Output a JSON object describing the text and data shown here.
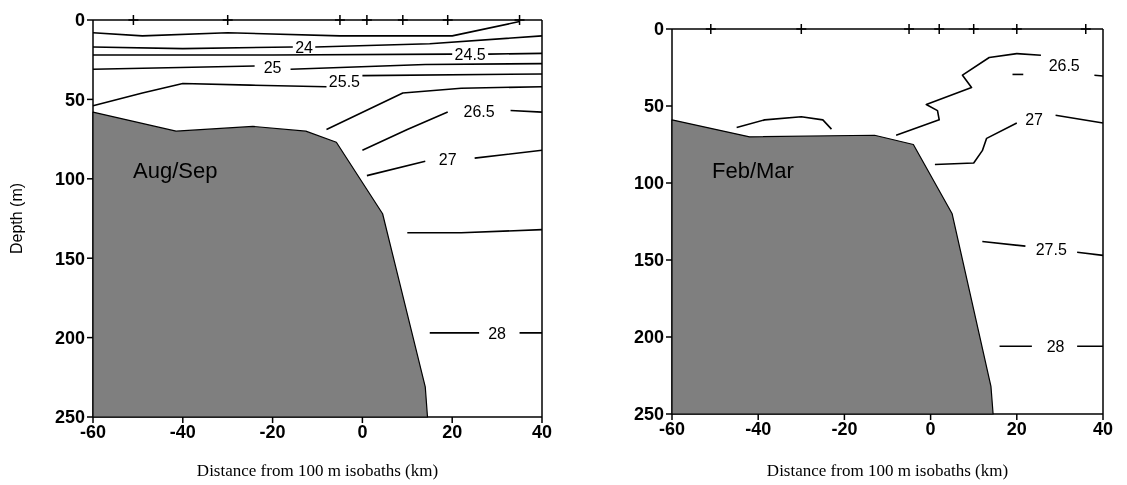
{
  "chart_data": [
    {
      "type": "line",
      "xlabel": "Distance from 100 m isobaths (km)",
      "ylabel": "Depth (m)",
      "annotations": [
        "Aug/Sep"
      ],
      "xlim": [
        -60,
        40
      ],
      "xticks": [
        -60,
        -40,
        -20,
        0,
        20,
        40
      ],
      "ylim": [
        250,
        0
      ],
      "yticks": [
        0,
        50,
        100,
        150,
        200,
        250
      ],
      "grid": false,
      "legend": false,
      "series": [
        {
          "type": "area",
          "color": "#7f7f7f",
          "x": [
            -60,
            -60,
            -41.5,
            -24.4,
            -12.6,
            -5.8,
            4.5,
            14,
            14.5
          ],
          "values": [
            250,
            58,
            70,
            67,
            70,
            77,
            122,
            231,
            250
          ]
        },
        {
          "color": "#000000",
          "x": [
            -60,
            -49,
            -30,
            -5,
            20,
            35
          ],
          "values": [
            8,
            10,
            8,
            10,
            10,
            1
          ]
        },
        {
          "name": "24",
          "color": "#000000",
          "x": [
            -60,
            -40,
            -15.5,
            -13,
            -10.5,
            15,
            40
          ],
          "values": [
            17,
            18,
            17,
            null,
            17,
            15,
            10
          ]
        },
        {
          "name": "24.5",
          "color": "#000000",
          "x": [
            -60,
            -20,
            20,
            24,
            28,
            40
          ],
          "values": [
            22,
            22,
            21.5,
            null,
            21.5,
            21
          ]
        },
        {
          "name": "25",
          "color": "#000000",
          "x": [
            -60,
            -24,
            -20,
            -16,
            14,
            40
          ],
          "values": [
            31,
            29,
            null,
            31,
            28,
            27.5
          ]
        },
        {
          "name": "25.5",
          "color": "#000000",
          "x": [
            -60,
            -49,
            -40,
            -25,
            -8,
            -4,
            0,
            40
          ],
          "values": [
            54,
            46,
            40,
            41,
            42,
            null,
            35,
            34
          ]
        },
        {
          "color": "#000000",
          "x": [
            -8,
            9,
            22,
            40
          ],
          "values": [
            69,
            46,
            43,
            42
          ]
        },
        {
          "name": "26.5",
          "color": "#000000",
          "x": [
            0,
            10,
            19,
            26,
            33,
            40
          ],
          "values": [
            82,
            69,
            58,
            null,
            57,
            58
          ]
        },
        {
          "name": "27",
          "color": "#000000",
          "x": [
            1,
            14,
            19,
            25,
            40
          ],
          "values": [
            98,
            89,
            null,
            87,
            82
          ]
        },
        {
          "color": "#000000",
          "x": [
            10,
            22,
            40
          ],
          "values": [
            134,
            134,
            132
          ]
        },
        {
          "name": "28",
          "color": "#000000",
          "x": [
            15,
            26,
            30,
            35,
            40
          ],
          "values": [
            197,
            197,
            null,
            197,
            197
          ]
        },
        {
          "type": "scatter",
          "marker": "cross",
          "color": "#000000",
          "x": [
            -51,
            -30,
            -5,
            1,
            9,
            19,
            35
          ],
          "values": [
            0,
            0,
            0,
            0,
            0,
            0,
            0
          ]
        }
      ]
    },
    {
      "type": "line",
      "xlabel": "Distance from 100 m isobaths (km)",
      "annotations": [
        "Feb/Mar"
      ],
      "xlim": [
        -60,
        40
      ],
      "xticks": [
        -60,
        -40,
        -20,
        0,
        20,
        40
      ],
      "ylim": [
        250,
        0
      ],
      "yticks": [
        0,
        50,
        100,
        150,
        200,
        250
      ],
      "grid": false,
      "legend": false,
      "series": [
        {
          "type": "area",
          "color": "#7f7f7f",
          "x": [
            -60,
            -60,
            -42,
            -13,
            -4,
            5,
            14,
            14.5
          ],
          "values": [
            250,
            59,
            70,
            69,
            75,
            120,
            232,
            250
          ]
        },
        {
          "name": "26.5",
          "color": "#000000",
          "x": [
            -45,
            -38.5,
            -30,
            -25,
            -23,
            -15,
            -8,
            2,
            1.6,
            -1,
            9.5,
            7.4,
            13.6,
            20,
            25.6,
            31,
            38,
            40
          ],
          "values": [
            64,
            59,
            57,
            59,
            65,
            null,
            69,
            59,
            53,
            49,
            38,
            30,
            18.5,
            16,
            17,
            null,
            30,
            30.5
          ]
        },
        {
          "color": "#000000",
          "x": [
            19,
            21.5
          ],
          "values": [
            29.5,
            29.5
          ]
        },
        {
          "name": "27",
          "color": "#000000",
          "x": [
            1,
            10,
            12,
            13,
            20,
            24,
            29,
            40
          ],
          "values": [
            88,
            87,
            79,
            71,
            61,
            null,
            56,
            61
          ]
        },
        {
          "name": "27.5",
          "color": "#000000",
          "x": [
            12,
            22,
            28,
            34,
            40
          ],
          "values": [
            138,
            141,
            null,
            145,
            147
          ]
        },
        {
          "name": "28",
          "color": "#000000",
          "x": [
            16,
            23.5,
            29,
            34,
            40
          ],
          "values": [
            206,
            206,
            null,
            206,
            206
          ]
        },
        {
          "type": "scatter",
          "marker": "cross",
          "color": "#000000",
          "x": [
            -51,
            -30,
            -5,
            2,
            10,
            20,
            36
          ],
          "values": [
            0,
            0,
            0,
            0,
            0,
            0,
            0
          ]
        }
      ]
    }
  ]
}
